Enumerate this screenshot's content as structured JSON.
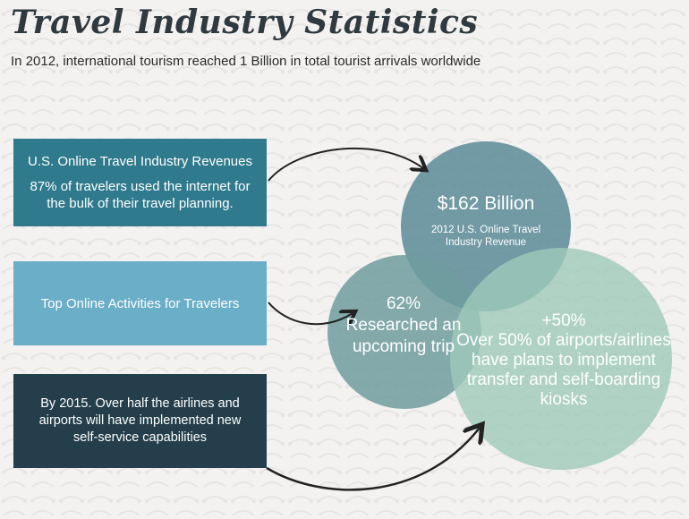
{
  "header": {
    "title": "Travel Industry Statistics",
    "subtitle": "In 2012, international tourism reached 1 Billion in total tourist arrivals worldwide"
  },
  "boxes": [
    {
      "heading": "U.S. Online Travel Industry Revenues",
      "text": "87% of travelers used the internet for the bulk of their travel planning.",
      "color": "#2f7a8d"
    },
    {
      "heading": "Top Online Activities for Travelers",
      "color": "#6aaec8"
    },
    {
      "text": "By 2015. Over half the airlines and airports will have implemented new self-service capabilities",
      "color": "#243f4b"
    }
  ],
  "circles": [
    {
      "value": "$162 Billion",
      "label": "2012 U.S. Online Travel Industry Revenue",
      "color": "#5e8d98"
    },
    {
      "value": "62%",
      "label": "Researched an upcoming trip",
      "color": "#6f9c9e"
    },
    {
      "value": "+50%",
      "label": "Over 50% of airports/airlines have plans to implement transfer and self-boarding kiosks",
      "color": "#9ec9b9"
    }
  ]
}
